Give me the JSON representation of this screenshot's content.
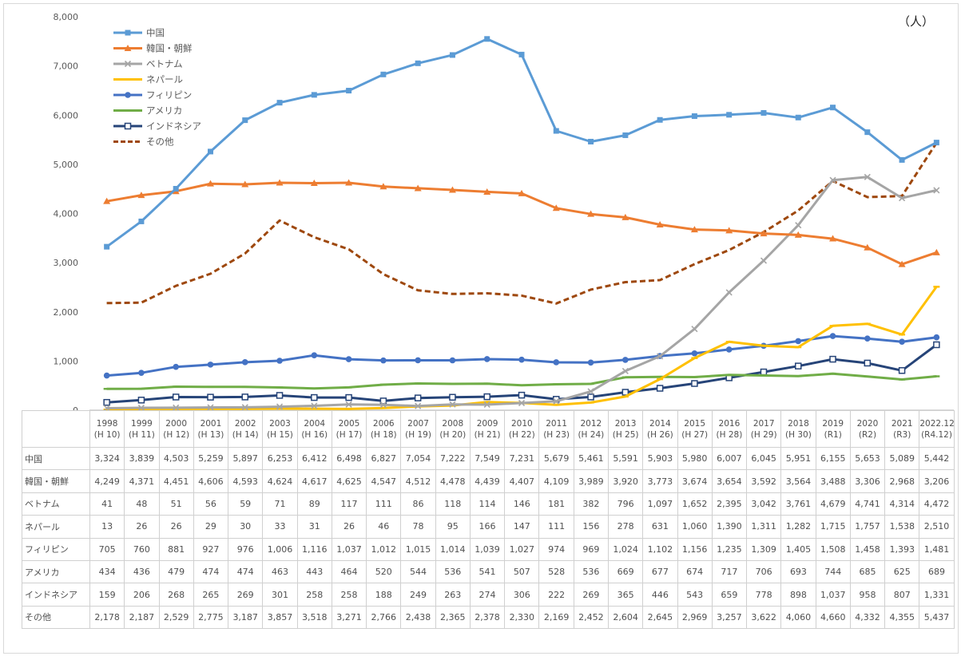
{
  "unit_label": "（人）",
  "chart_data": {
    "type": "line",
    "ylim": [
      0,
      8000
    ],
    "y_ticks": [
      "0",
      "1,000",
      "2,000",
      "3,000",
      "4,000",
      "5,000",
      "6,000",
      "7,000",
      "8,000"
    ],
    "grid": false,
    "legend_position": "top-left",
    "categories": [
      [
        "1998",
        "(H 10)"
      ],
      [
        "1999",
        "(H 11)"
      ],
      [
        "2000",
        "(H 12)"
      ],
      [
        "2001",
        "(H 13)"
      ],
      [
        "2002",
        "(H 14)"
      ],
      [
        "2003",
        "(H 15)"
      ],
      [
        "2004",
        "(H 16)"
      ],
      [
        "2005",
        "(H 17)"
      ],
      [
        "2006",
        "(H 18)"
      ],
      [
        "2007",
        "(H 19)"
      ],
      [
        "2008",
        "(H 20)"
      ],
      [
        "2009",
        "(H 21)"
      ],
      [
        "2010",
        "(H 22)"
      ],
      [
        "2011",
        "(H 23)"
      ],
      [
        "2012",
        "(H 24)"
      ],
      [
        "2013",
        "(H 25)"
      ],
      [
        "2014",
        "(H 26)"
      ],
      [
        "2015",
        "(H 27)"
      ],
      [
        "2016",
        "(H 28)"
      ],
      [
        "2017",
        "(H 29)"
      ],
      [
        "2018",
        "(H 30)"
      ],
      [
        "2019",
        "(R1)"
      ],
      [
        "2020",
        "(R2)"
      ],
      [
        "2021",
        "(R3)"
      ],
      [
        "2022.12",
        "(R4.12)"
      ]
    ],
    "series": [
      {
        "name": "中国",
        "color": "#5b9bd5",
        "marker": "square",
        "dash": false,
        "values": [
          3324,
          3839,
          4503,
          5259,
          5897,
          6253,
          6412,
          6498,
          6827,
          7054,
          7222,
          7549,
          7231,
          5679,
          5461,
          5591,
          5903,
          5980,
          6007,
          6045,
          5951,
          6155,
          5653,
          5089,
          5442
        ],
        "labels": [
          "3,324",
          "3,839",
          "4,503",
          "5,259",
          "5,897",
          "6,253",
          "6,412",
          "6,498",
          "6,827",
          "7,054",
          "7,222",
          "7,549",
          "7,231",
          "5,679",
          "5,461",
          "5,591",
          "5,903",
          "5,980",
          "6,007",
          "6,045",
          "5,951",
          "6,155",
          "5,653",
          "5,089",
          "5,442"
        ]
      },
      {
        "name": "韓国・朝鮮",
        "color": "#ed7d31",
        "marker": "triangle",
        "dash": false,
        "values": [
          4249,
          4371,
          4451,
          4606,
          4593,
          4624,
          4617,
          4625,
          4547,
          4512,
          4478,
          4439,
          4407,
          4109,
          3989,
          3920,
          3773,
          3674,
          3654,
          3592,
          3564,
          3488,
          3306,
          2968,
          3206
        ],
        "labels": [
          "4,249",
          "4,371",
          "4,451",
          "4,606",
          "4,593",
          "4,624",
          "4,617",
          "4,625",
          "4,547",
          "4,512",
          "4,478",
          "4,439",
          "4,407",
          "4,109",
          "3,989",
          "3,920",
          "3,773",
          "3,674",
          "3,654",
          "3,592",
          "3,564",
          "3,488",
          "3,306",
          "2,968",
          "3,206"
        ]
      },
      {
        "name": "ベトナム",
        "color": "#a5a5a5",
        "marker": "x",
        "dash": false,
        "values": [
          41,
          48,
          51,
          56,
          59,
          71,
          89,
          117,
          111,
          86,
          118,
          114,
          146,
          181,
          382,
          796,
          1097,
          1652,
          2395,
          3042,
          3761,
          4679,
          4741,
          4314,
          4472
        ],
        "labels": [
          "41",
          "48",
          "51",
          "56",
          "59",
          "71",
          "89",
          "117",
          "111",
          "86",
          "118",
          "114",
          "146",
          "181",
          "382",
          "796",
          "1,097",
          "1,652",
          "2,395",
          "3,042",
          "3,761",
          "4,679",
          "4,741",
          "4,314",
          "4,472"
        ]
      },
      {
        "name": "ネパール",
        "color": "#ffc000",
        "marker": "dash",
        "dash": false,
        "values": [
          13,
          26,
          26,
          29,
          30,
          33,
          31,
          26,
          46,
          78,
          95,
          166,
          147,
          111,
          156,
          278,
          631,
          1060,
          1390,
          1311,
          1282,
          1715,
          1757,
          1538,
          2510
        ],
        "labels": [
          "13",
          "26",
          "26",
          "29",
          "30",
          "33",
          "31",
          "26",
          "46",
          "78",
          "95",
          "166",
          "147",
          "111",
          "156",
          "278",
          "631",
          "1,060",
          "1,390",
          "1,311",
          "1,282",
          "1,715",
          "1,757",
          "1,538",
          "2,510"
        ]
      },
      {
        "name": "フィリピン",
        "color": "#4472c4",
        "marker": "circle",
        "dash": false,
        "values": [
          705,
          760,
          881,
          927,
          976,
          1006,
          1116,
          1037,
          1012,
          1015,
          1014,
          1039,
          1027,
          974,
          969,
          1024,
          1102,
          1156,
          1235,
          1309,
          1405,
          1508,
          1458,
          1393,
          1481
        ],
        "labels": [
          "705",
          "760",
          "881",
          "927",
          "976",
          "1,006",
          "1,116",
          "1,037",
          "1,012",
          "1,015",
          "1,014",
          "1,039",
          "1,027",
          "974",
          "969",
          "1,024",
          "1,102",
          "1,156",
          "1,235",
          "1,309",
          "1,405",
          "1,508",
          "1,458",
          "1,393",
          "1,481"
        ]
      },
      {
        "name": "アメリカ",
        "color": "#70ad47",
        "marker": "dash",
        "dash": false,
        "values": [
          434,
          436,
          479,
          474,
          474,
          463,
          443,
          464,
          520,
          544,
          536,
          541,
          507,
          528,
          536,
          669,
          677,
          674,
          717,
          706,
          693,
          744,
          685,
          625,
          689
        ],
        "labels": [
          "434",
          "436",
          "479",
          "474",
          "474",
          "463",
          "443",
          "464",
          "520",
          "544",
          "536",
          "541",
          "507",
          "528",
          "536",
          "669",
          "677",
          "674",
          "717",
          "706",
          "693",
          "744",
          "685",
          "625",
          "689"
        ]
      },
      {
        "name": "インドネシア",
        "color": "#264478",
        "marker": "hollow-square",
        "dash": false,
        "values": [
          159,
          206,
          268,
          265,
          269,
          301,
          258,
          258,
          188,
          249,
          263,
          274,
          306,
          222,
          269,
          365,
          446,
          543,
          659,
          778,
          898,
          1037,
          958,
          807,
          1331
        ],
        "labels": [
          "159",
          "206",
          "268",
          "265",
          "269",
          "301",
          "258",
          "258",
          "188",
          "249",
          "263",
          "274",
          "306",
          "222",
          "269",
          "365",
          "446",
          "543",
          "659",
          "778",
          "898",
          "1,037",
          "958",
          "807",
          "1,331"
        ]
      },
      {
        "name": "その他",
        "color": "#9e480e",
        "marker": "none",
        "dash": true,
        "values": [
          2178,
          2187,
          2529,
          2775,
          3187,
          3857,
          3518,
          3271,
          2766,
          2438,
          2365,
          2378,
          2330,
          2169,
          2452,
          2604,
          2645,
          2969,
          3257,
          3622,
          4060,
          4660,
          4332,
          4355,
          5437
        ],
        "labels": [
          "2,178",
          "2,187",
          "2,529",
          "2,775",
          "3,187",
          "3,857",
          "3,518",
          "3,271",
          "2,766",
          "2,438",
          "2,365",
          "2,378",
          "2,330",
          "2,169",
          "2,452",
          "2,604",
          "2,645",
          "2,969",
          "3,257",
          "3,622",
          "4,060",
          "4,660",
          "4,332",
          "4,355",
          "5,437"
        ]
      }
    ]
  }
}
